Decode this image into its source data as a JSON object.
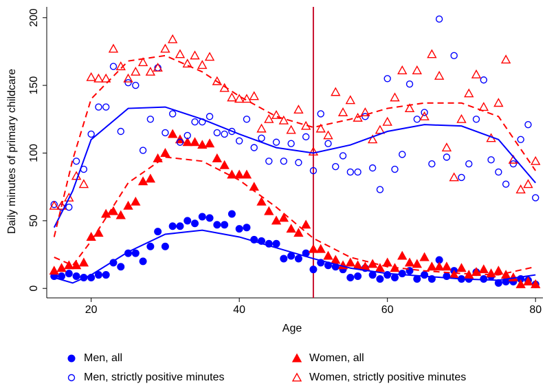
{
  "chart_data": {
    "type": "scatter",
    "x_label": "Age",
    "y_label": "Daily minutes of primary childcare",
    "xlim": [
      14,
      81
    ],
    "ylim": [
      -7,
      208
    ],
    "xticks": [
      20,
      40,
      60,
      80
    ],
    "yticks": [
      0,
      50,
      100,
      150,
      200
    ],
    "vline": 50,
    "vline_color": "#c8102e",
    "x": [
      15,
      16,
      17,
      18,
      19,
      20,
      21,
      22,
      23,
      24,
      25,
      26,
      27,
      28,
      29,
      30,
      31,
      32,
      33,
      34,
      35,
      36,
      37,
      38,
      39,
      40,
      41,
      42,
      43,
      44,
      45,
      46,
      47,
      48,
      49,
      50,
      51,
      52,
      53,
      54,
      55,
      56,
      57,
      58,
      59,
      60,
      61,
      62,
      63,
      64,
      65,
      66,
      67,
      68,
      69,
      70,
      71,
      72,
      73,
      74,
      75,
      76,
      77,
      78,
      79,
      80
    ],
    "series": [
      {
        "name": "Men, all",
        "color": "#0000ff",
        "marker": "circle",
        "filled": true,
        "values": [
          9,
          9,
          11,
          9,
          8,
          8,
          10,
          10,
          19,
          16,
          26,
          26,
          20,
          31,
          42,
          31,
          46,
          46,
          50,
          48,
          53,
          52,
          47,
          47,
          55,
          44,
          45,
          36,
          35,
          33,
          33,
          22,
          24,
          22,
          26,
          14,
          19,
          17,
          16,
          14,
          8,
          9,
          15,
          10,
          7,
          10,
          8,
          11,
          13,
          7,
          10,
          7,
          21,
          9,
          13,
          7,
          7,
          12,
          7,
          9,
          4,
          5,
          5,
          7,
          6,
          3
        ]
      },
      {
        "name": "Women, all",
        "color": "#ff0000",
        "marker": "triangle",
        "filled": true,
        "values": [
          13,
          15,
          17,
          17,
          19,
          38,
          41,
          55,
          57,
          54,
          61,
          64,
          79,
          81,
          96,
          100,
          114,
          110,
          108,
          108,
          106,
          107,
          96,
          91,
          84,
          84,
          84,
          75,
          64,
          57,
          50,
          52,
          44,
          41,
          47,
          29,
          29,
          24,
          21,
          17,
          19,
          17,
          16,
          18,
          15,
          19,
          15,
          24,
          19,
          18,
          23,
          16,
          16,
          16,
          10,
          15,
          10,
          12,
          14,
          11,
          13,
          10,
          8,
          3,
          5,
          3
        ]
      },
      {
        "name": "Men, strictly positive minutes",
        "color": "#0000ff",
        "marker": "circle",
        "filled": false,
        "values": [
          62,
          60,
          60,
          94,
          88,
          114,
          134,
          134,
          164,
          116,
          152,
          150,
          102,
          125,
          163,
          115,
          129,
          108,
          113,
          123,
          123,
          127,
          115,
          114,
          116,
          109,
          125,
          104,
          111,
          94,
          108,
          94,
          107,
          93,
          112,
          87,
          129,
          107,
          90,
          98,
          86,
          86,
          127,
          89,
          73,
          155,
          88,
          99,
          151,
          125,
          130,
          92,
          199,
          97,
          172,
          82,
          92,
          125,
          154,
          95,
          86,
          77,
          92,
          110,
          121,
          67
        ]
      },
      {
        "name": "Women, strictly positive minutes",
        "color": "#ff0000",
        "marker": "triangle",
        "filled": false,
        "values": [
          61,
          61,
          67,
          83,
          77,
          156,
          155,
          155,
          177,
          164,
          155,
          160,
          167,
          160,
          163,
          177,
          184,
          173,
          166,
          172,
          165,
          171,
          153,
          148,
          141,
          140,
          140,
          142,
          118,
          125,
          128,
          124,
          117,
          132,
          120,
          101,
          118,
          113,
          145,
          130,
          139,
          126,
          130,
          110,
          117,
          123,
          141,
          161,
          133,
          161,
          127,
          173,
          157,
          104,
          82,
          125,
          144,
          158,
          134,
          111,
          137,
          169,
          95,
          73,
          77,
          94
        ]
      }
    ],
    "fits": [
      {
        "color": "#0000ff",
        "dashed": false,
        "x": [
          15,
          17.5,
          20,
          25,
          30,
          35,
          40,
          45,
          50,
          55,
          60,
          65,
          70,
          75,
          80
        ],
        "values": [
          8,
          4,
          10,
          27,
          40,
          43,
          38,
          30,
          22,
          15,
          11,
          9,
          7,
          6,
          10
        ]
      },
      {
        "color": "#ff0000",
        "dashed": true,
        "x": [
          15,
          17.5,
          20,
          25,
          30,
          35,
          40,
          45,
          50,
          55,
          60,
          65,
          70,
          75,
          80
        ],
        "values": [
          23,
          17,
          35,
          78,
          97,
          94,
          80,
          60,
          37,
          23,
          16,
          13,
          11,
          10,
          16
        ]
      },
      {
        "color": "#0000ff",
        "dashed": false,
        "x": [
          15,
          17.5,
          20,
          25,
          30,
          35,
          40,
          45,
          50,
          55,
          60,
          65,
          70,
          75,
          80
        ],
        "values": [
          45,
          72,
          110,
          133,
          134,
          125,
          114,
          104,
          100,
          106,
          116,
          121,
          120,
          110,
          78
        ]
      },
      {
        "color": "#ff0000",
        "dashed": true,
        "x": [
          15,
          17.5,
          20,
          25,
          30,
          35,
          40,
          45,
          50,
          55,
          60,
          65,
          70,
          75,
          80
        ],
        "values": [
          38,
          95,
          140,
          168,
          172,
          160,
          142,
          127,
          119,
          125,
          133,
          137,
          137,
          127,
          87
        ]
      }
    ]
  }
}
